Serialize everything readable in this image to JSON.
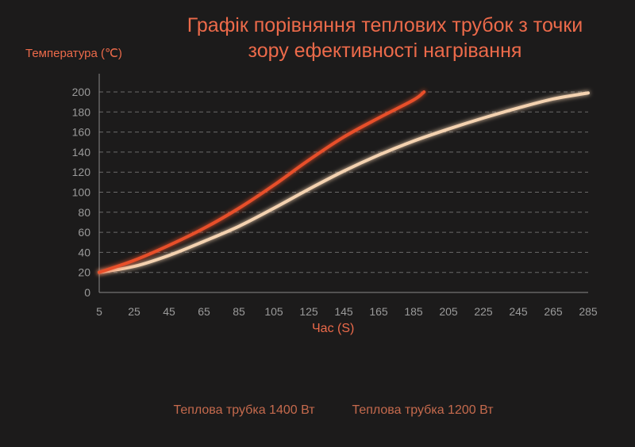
{
  "chart_data": {
    "type": "line",
    "title": "Графік порівняння теплових трубок з точки зору ефективності нагрівання",
    "ylabel": "Температура (℃)",
    "xlabel": "Час (S)",
    "xlim": [
      5,
      285
    ],
    "ylim": [
      0,
      200
    ],
    "xticks": [
      5,
      25,
      45,
      65,
      85,
      105,
      125,
      145,
      165,
      185,
      205,
      225,
      245,
      265,
      285
    ],
    "yticks": [
      0,
      20,
      40,
      60,
      80,
      100,
      120,
      140,
      160,
      180,
      200
    ],
    "grid": true,
    "legend_position": "bottom",
    "series": [
      {
        "name": "Теплова трубка 1400 Вт",
        "color": "#e8502b",
        "x": [
          5,
          25,
          45,
          65,
          85,
          105,
          125,
          145,
          165,
          185,
          191
        ],
        "y": [
          20,
          32,
          47,
          64,
          84,
          107,
          132,
          155,
          174,
          192,
          200
        ]
      },
      {
        "name": "Теплова трубка 1200 Вт",
        "color": "#f4d2b0",
        "x": [
          5,
          25,
          45,
          65,
          85,
          105,
          125,
          145,
          165,
          185,
          205,
          225,
          245,
          265,
          285
        ],
        "y": [
          20,
          26,
          37,
          51,
          66,
          84,
          103,
          121,
          137,
          151,
          163,
          174,
          184,
          193,
          199
        ]
      }
    ]
  }
}
